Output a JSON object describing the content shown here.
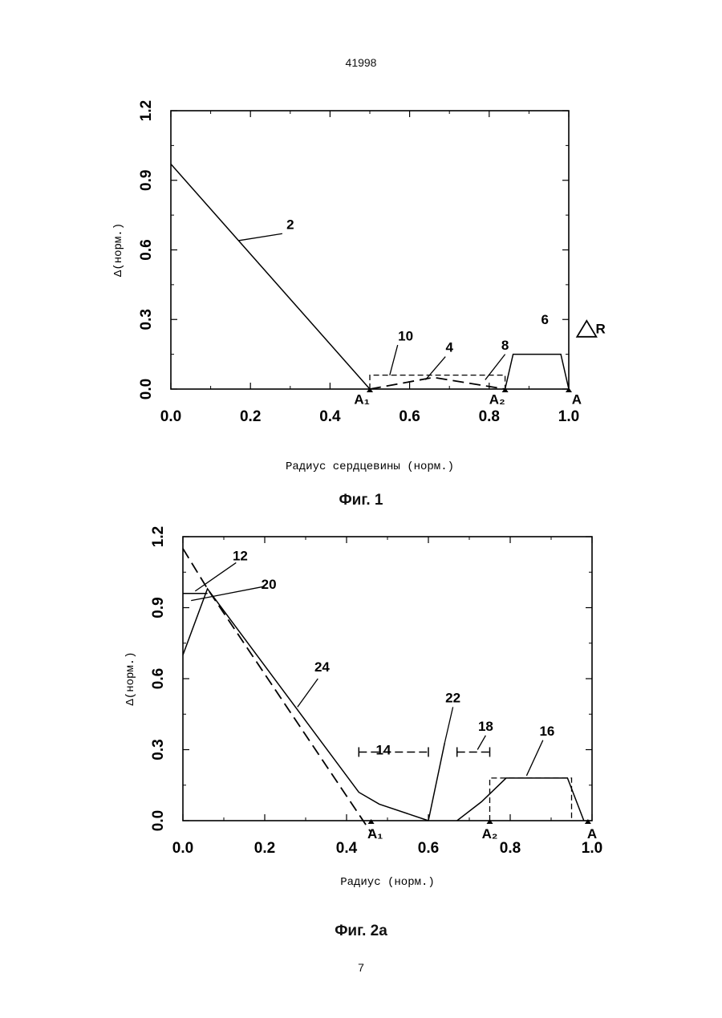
{
  "document": {
    "number": "41998",
    "page": "7"
  },
  "chart_data": [
    {
      "type": "line",
      "caption": "Фиг. 1",
      "xlabel": "Радиус сердцевины (норм.)",
      "ylabel": "Δ(норм.)",
      "xlim": [
        0,
        1.0
      ],
      "ylim": [
        0,
        1.2
      ],
      "x_ticks": [
        "0.0",
        "0.2",
        "0.4",
        "0.6",
        "0.8",
        "1.0"
      ],
      "y_ticks": [
        "0.0",
        "0.3",
        "0.6",
        "0.9",
        "1.2"
      ],
      "grid": false,
      "series": [
        {
          "label": "2",
          "style": "solid",
          "x": [
            0,
            0.5
          ],
          "y": [
            0.97,
            0
          ]
        },
        {
          "label": "4",
          "style": "dashed",
          "x": [
            0.5,
            0.66,
            0.84
          ],
          "y": [
            0.0,
            0.05,
            0.0
          ]
        },
        {
          "label": "10",
          "style": "dashed-box",
          "x": [
            0.5,
            0.5,
            0.84,
            0.84
          ],
          "y": [
            0.0,
            0.06,
            0.06,
            0.0
          ]
        },
        {
          "label": "6",
          "style": "solid",
          "x": [
            0.84,
            0.86,
            0.98,
            1.0
          ],
          "y": [
            0.0,
            0.15,
            0.15,
            0.0
          ]
        }
      ],
      "annotations": [
        {
          "text": "2",
          "x": 0.3,
          "y": 0.69
        },
        {
          "text": "10",
          "x": 0.59,
          "y": 0.21
        },
        {
          "text": "4",
          "x": 0.7,
          "y": 0.16
        },
        {
          "text": "8",
          "x": 0.84,
          "y": 0.17
        },
        {
          "text": "6",
          "x": 0.94,
          "y": 0.28
        },
        {
          "text": "R",
          "x": 1.08,
          "y": 0.24
        },
        {
          "text": "A1",
          "x": 0.48,
          "y": -0.03
        },
        {
          "text": "A2",
          "x": 0.82,
          "y": -0.03
        },
        {
          "text": "A",
          "x": 1.02,
          "y": -0.03
        }
      ]
    },
    {
      "type": "line",
      "caption": "Фиг. 2a",
      "xlabel": "Радиус (норм.)",
      "ylabel": "Δ(норм.)",
      "xlim": [
        0,
        1.0
      ],
      "ylim": [
        0,
        1.2
      ],
      "x_ticks": [
        "0.0",
        "0.2",
        "0.4",
        "0.6",
        "0.8",
        "1.0"
      ],
      "y_ticks": [
        "0.0",
        "0.3",
        "0.6",
        "0.9",
        "1.2"
      ],
      "grid": false,
      "series": [
        {
          "label": "24",
          "style": "solid",
          "x": [
            0,
            0.06,
            0.43,
            0.48,
            0.6
          ],
          "y": [
            0.7,
            0.98,
            0.12,
            0.07,
            0.0
          ]
        },
        {
          "label": "22",
          "style": "solid",
          "x": [
            0.6,
            0.64
          ],
          "y": [
            0.0,
            0.33
          ]
        },
        {
          "label": "12",
          "style": "dashed",
          "x": [
            0.0,
            0.06,
            0.46
          ],
          "y": [
            1.15,
            0.98,
            -0.05
          ]
        },
        {
          "label": "16",
          "style": "solid",
          "x": [
            0.67,
            0.73,
            0.79,
            0.94,
            0.98
          ],
          "y": [
            0.0,
            0.08,
            0.18,
            0.18,
            0.0
          ]
        },
        {
          "label": "16-box",
          "style": "dashed-box",
          "x": [
            0.75,
            0.75,
            0.95,
            0.95
          ],
          "y": [
            0.0,
            0.18,
            0.18,
            0.0
          ]
        },
        {
          "label": "20",
          "style": "solid",
          "x": [
            0.0,
            0.06
          ],
          "y": [
            0.96,
            0.96
          ]
        }
      ],
      "annotations": [
        {
          "text": "12",
          "x": 0.14,
          "y": 1.1
        },
        {
          "text": "20",
          "x": 0.21,
          "y": 0.98
        },
        {
          "text": "24",
          "x": 0.34,
          "y": 0.63
        },
        {
          "text": "22",
          "x": 0.66,
          "y": 0.5
        },
        {
          "text": "14",
          "x": 0.49,
          "y": 0.28
        },
        {
          "text": "18",
          "x": 0.74,
          "y": 0.38
        },
        {
          "text": "16",
          "x": 0.89,
          "y": 0.36
        },
        {
          "text": "A1",
          "x": 0.47,
          "y": -0.04
        },
        {
          "text": "A2",
          "x": 0.75,
          "y": -0.04
        },
        {
          "text": "A",
          "x": 1.0,
          "y": -0.04
        }
      ],
      "intervals": [
        {
          "label": "14",
          "x0": 0.43,
          "x1": 0.6,
          "y": 0.29
        },
        {
          "label": "18",
          "x0": 0.67,
          "x1": 0.75,
          "y": 0.29
        }
      ]
    }
  ]
}
